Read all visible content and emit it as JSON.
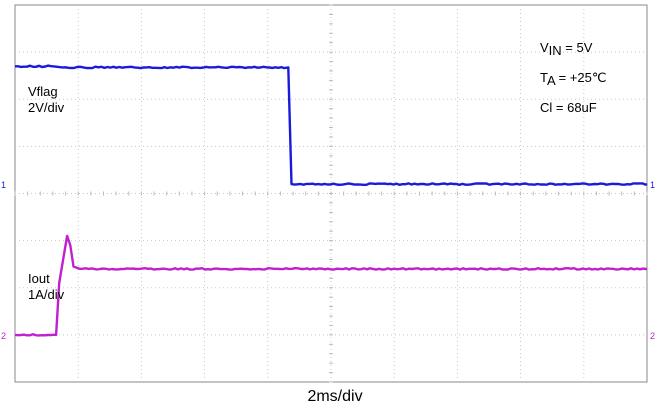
{
  "chart_data": {
    "type": "line",
    "title": "",
    "xlabel": "2ms/div",
    "grid": true,
    "divisions": {
      "x": 10,
      "y": 8
    },
    "time_per_div_ms": 2,
    "series": [
      {
        "name": "Vflag",
        "scale": "2V/div",
        "color": "#1a1adc",
        "marker": "1",
        "x": [
          0,
          1.2,
          1.5,
          8.65,
          8.75,
          20
        ],
        "y": [
          5,
          5,
          4.95,
          4.95,
          0,
          0
        ]
      },
      {
        "name": "Iout",
        "scale": "1A/div",
        "color": "#c020d0",
        "marker": "2",
        "x": [
          0,
          1.3,
          1.4,
          1.65,
          1.75,
          1.85,
          2.05,
          2.5,
          20
        ],
        "y": [
          0,
          0,
          1.1,
          2.1,
          1.9,
          1.45,
          1.4,
          1.4,
          1.4
        ]
      }
    ]
  },
  "annotations": {
    "vin_main": "V",
    "vin_sub": "IN",
    "vin_rest": " = 5V",
    "ta_main": "T",
    "ta_sub": "A",
    "ta_rest": " = +25℃",
    "cl": "Cl = 68uF"
  },
  "channel_labels": {
    "ch1_name": "Vflag",
    "ch1_scale": "2V/div",
    "ch2_name": "Iout",
    "ch2_scale": "1A/div"
  }
}
